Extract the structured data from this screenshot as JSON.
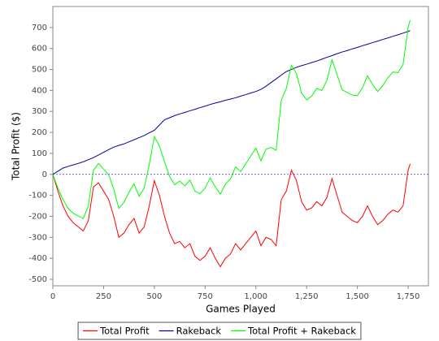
{
  "chart_data": {
    "type": "line",
    "xlabel": "Games Played",
    "ylabel": "Total Profit ($)",
    "x": [
      0,
      25,
      50,
      75,
      100,
      125,
      150,
      175,
      200,
      225,
      250,
      275,
      300,
      325,
      350,
      375,
      400,
      425,
      450,
      475,
      500,
      525,
      550,
      575,
      600,
      625,
      650,
      675,
      700,
      725,
      750,
      775,
      800,
      825,
      850,
      875,
      900,
      925,
      950,
      975,
      1000,
      1025,
      1050,
      1075,
      1100,
      1125,
      1150,
      1175,
      1200,
      1225,
      1250,
      1275,
      1300,
      1325,
      1350,
      1375,
      1400,
      1425,
      1450,
      1475,
      1500,
      1525,
      1550,
      1575,
      1600,
      1625,
      1650,
      1675,
      1700,
      1725,
      1750,
      1760
    ],
    "series": [
      {
        "name": "Total Profit",
        "color": "#ff0000",
        "values": [
          0,
          -80,
          -150,
          -200,
          -230,
          -250,
          -270,
          -220,
          -60,
          -40,
          -80,
          -120,
          -200,
          -300,
          -280,
          -240,
          -210,
          -280,
          -250,
          -150,
          -30,
          -100,
          -200,
          -280,
          -330,
          -320,
          -350,
          -330,
          -390,
          -410,
          -390,
          -350,
          -400,
          -440,
          -400,
          -380,
          -330,
          -360,
          -330,
          -300,
          -270,
          -340,
          -300,
          -310,
          -340,
          -120,
          -80,
          20,
          -30,
          -130,
          -170,
          -160,
          -130,
          -150,
          -110,
          -20,
          -100,
          -180,
          -200,
          -220,
          -230,
          -200,
          -150,
          -200,
          -240,
          -220,
          -190,
          -170,
          -180,
          -150,
          20,
          50
        ]
      },
      {
        "name": "Rakeback",
        "color": "#0000a0",
        "values": [
          0,
          15,
          30,
          38,
          45,
          52,
          60,
          70,
          80,
          92,
          105,
          118,
          130,
          138,
          145,
          155,
          165,
          175,
          185,
          198,
          210,
          235,
          260,
          270,
          280,
          288,
          295,
          303,
          310,
          318,
          325,
          333,
          340,
          346,
          353,
          359,
          365,
          373,
          380,
          388,
          395,
          405,
          420,
          438,
          455,
          473,
          490,
          500,
          510,
          518,
          525,
          533,
          540,
          549,
          558,
          566,
          575,
          583,
          590,
          598,
          605,
          613,
          620,
          628,
          635,
          643,
          650,
          658,
          665,
          673,
          681,
          685
        ]
      },
      {
        "name": "Total Profit + Rakeback",
        "color": "#00ff00",
        "values": [
          0,
          -65,
          -120,
          -162,
          -185,
          -198,
          -210,
          -150,
          20,
          52,
          25,
          -2,
          -70,
          -162,
          -135,
          -85,
          -45,
          -105,
          -65,
          48,
          180,
          135,
          60,
          -10,
          -50,
          -32,
          -55,
          -27,
          -80,
          -92,
          -65,
          -17,
          -60,
          -94,
          -47,
          -21,
          35,
          13,
          50,
          88,
          125,
          65,
          120,
          128,
          115,
          353,
          410,
          520,
          480,
          388,
          355,
          373,
          410,
          399,
          448,
          546,
          475,
          403,
          390,
          378,
          375,
          413,
          470,
          428,
          395,
          423,
          460,
          488,
          485,
          523,
          701,
          735
        ]
      }
    ],
    "xlim": [
      0,
      1850
    ],
    "ylim": [
      -531,
      800
    ],
    "xticks": [
      0,
      250,
      500,
      750,
      {
        "value": 1000,
        "label": "1,000"
      },
      {
        "value": 1250,
        "label": "1,250"
      },
      {
        "value": 1500,
        "label": "1,500"
      },
      {
        "value": 1750,
        "label": "1,750"
      }
    ],
    "yticks": [
      -500,
      -400,
      -300,
      -200,
      -100,
      0,
      100,
      200,
      300,
      400,
      500,
      600,
      700
    ],
    "zero_line": true,
    "legend": "bottom"
  }
}
